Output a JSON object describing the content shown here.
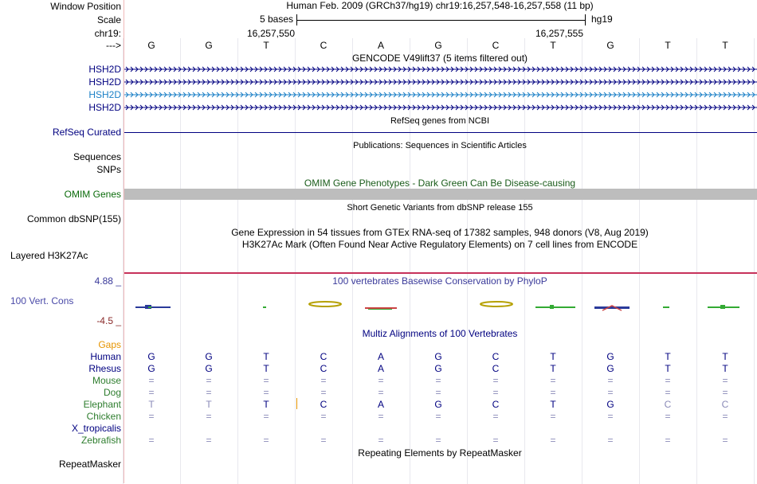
{
  "header": {
    "window_position_label": "Window Position",
    "scale_label": "Scale",
    "chrom_label": "chr19:",
    "arrow_label": "--->",
    "position_text": "Human Feb. 2009 (GRCh37/hg19)   chr19:16,257,548-16,257,558 (11 bp)",
    "scale_text": "5 bases",
    "assembly": "hg19",
    "coord_left": "16,257,550",
    "coord_right": "16,257,555"
  },
  "bases": [
    "G",
    "G",
    "T",
    "C",
    "A",
    "G",
    "C",
    "T",
    "G",
    "T",
    "T"
  ],
  "tracks": {
    "gencode_title": "GENCODE V49lift37 (5 items filtered out)",
    "gencode_items": [
      {
        "label": "HSH2D",
        "color": "#000080"
      },
      {
        "label": "HSH2D",
        "color": "#000080"
      },
      {
        "label": "HSH2D",
        "color": "#1a7fc6"
      },
      {
        "label": "HSH2D",
        "color": "#000080"
      }
    ],
    "refseq_title": "RefSeq genes from NCBI",
    "refseq_label": "RefSeq Curated",
    "pubs_title": "Publications: Sequences in Scientific Articles",
    "sequences_label": "Sequences",
    "snps_label": "SNPs",
    "omim_title": "OMIM Gene Phenotypes - Dark Green Can Be Disease-causing",
    "omim_label": "OMIM Genes",
    "dbsnp_title": "Short Genetic Variants from dbSNP release 155",
    "dbsnp_label": "Common dbSNP(155)",
    "gtex_title": "Gene Expression in 54 tissues from GTEx RNA-seq of 17382 samples, 948 donors (V8, Aug 2019)",
    "h3k27ac_title": "H3K27Ac Mark (Often Found Near Active Regulatory Elements) on 7 cell lines from ENCODE",
    "h3k27ac_label": "Layered H3K27Ac",
    "cons_title": "100 vertebrates Basewise Conservation by PhyloP",
    "cons_label": "100 Vert. Cons",
    "cons_max": "4.88 _",
    "cons_min": "-4.5 _",
    "multiz_title": "Multiz Alignments of 100 Vertebrates",
    "repeat_title": "Repeating Elements by RepeatMasker",
    "repeat_label": "RepeatMasker"
  },
  "multiz": {
    "gaps_label": "Gaps",
    "species": [
      {
        "name": "Human",
        "color": "#000080",
        "values": [
          "G",
          "G",
          "T",
          "C",
          "A",
          "G",
          "C",
          "T",
          "G",
          "T",
          "T"
        ]
      },
      {
        "name": "Rhesus",
        "color": "#000080",
        "values": [
          "G",
          "G",
          "T",
          "C",
          "A",
          "G",
          "C",
          "T",
          "G",
          "T",
          "T"
        ]
      },
      {
        "name": "Mouse",
        "color": "#2e7d2e",
        "values": [
          "=",
          "=",
          "=",
          "=",
          "=",
          "=",
          "=",
          "=",
          "=",
          "=",
          "="
        ]
      },
      {
        "name": "Dog",
        "color": "#2e7d2e",
        "values": [
          "=",
          "=",
          "=",
          "=",
          "=",
          "=",
          "=",
          "=",
          "=",
          "=",
          "="
        ]
      },
      {
        "name": "Elephant",
        "color": "#2e7d2e",
        "values": [
          "T",
          "T",
          "T",
          "C",
          "A",
          "G",
          "C",
          "T",
          "G",
          "C",
          "C"
        ]
      },
      {
        "name": "Chicken",
        "color": "#2e7d2e",
        "values": [
          "=",
          "=",
          "=",
          "=",
          "=",
          "=",
          "=",
          "=",
          "=",
          "=",
          "="
        ]
      },
      {
        "name": "X_tropicalis",
        "color": "#000080",
        "values": [
          "",
          "",
          "",
          "",
          "",
          "",
          "",
          "",
          "",
          "",
          ""
        ]
      },
      {
        "name": "Zebrafish",
        "color": "#2e7d2e",
        "values": [
          "=",
          "=",
          "=",
          "=",
          "=",
          "=",
          "=",
          "=",
          "=",
          "=",
          "="
        ]
      }
    ]
  },
  "colors": {
    "gaps": "#e69400",
    "omim": "#bdbdbd",
    "h3k27ac": "#c7325a",
    "cons_label": "#4a4aa8",
    "cons_max": "#3a3a9a",
    "cons_min": "#8a2a2a",
    "omim_title": "#1a5c1a",
    "green_label": "#0a6b0a",
    "refseq": "#000080"
  }
}
